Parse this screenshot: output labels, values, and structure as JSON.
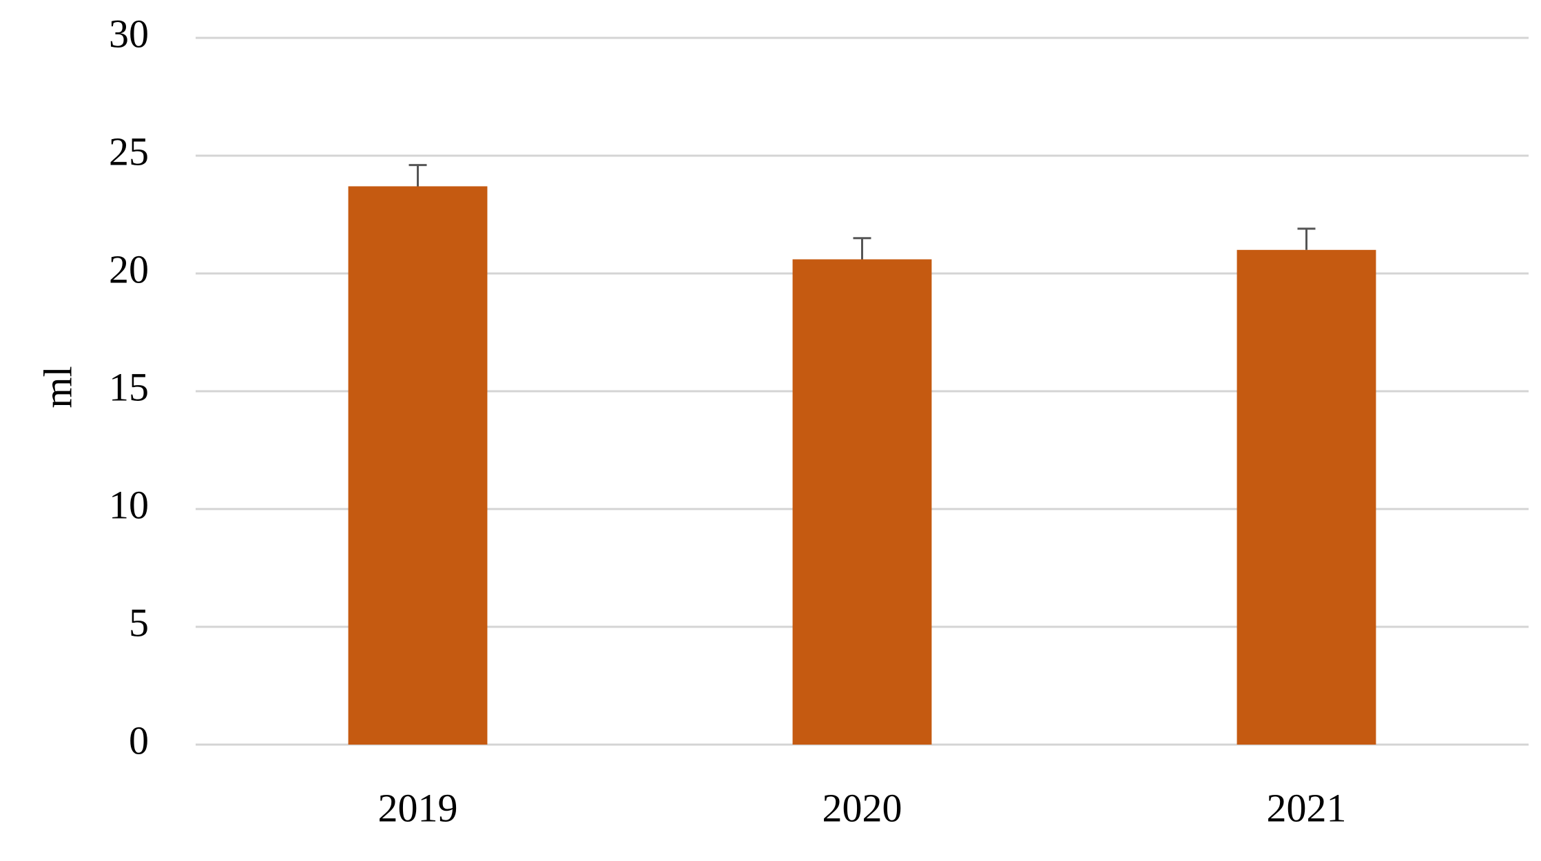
{
  "chart_data": {
    "type": "bar",
    "y_label": "ml",
    "categories": [
      "2019",
      "2020",
      "2021"
    ],
    "values": [
      23.7,
      20.6,
      21.0
    ],
    "errors": [
      0.9,
      0.9,
      0.9
    ],
    "color": "#c55a11",
    "ylim": [
      0,
      30
    ],
    "yticks": [
      0,
      5,
      10,
      15,
      20,
      25,
      30
    ],
    "grid": true
  }
}
